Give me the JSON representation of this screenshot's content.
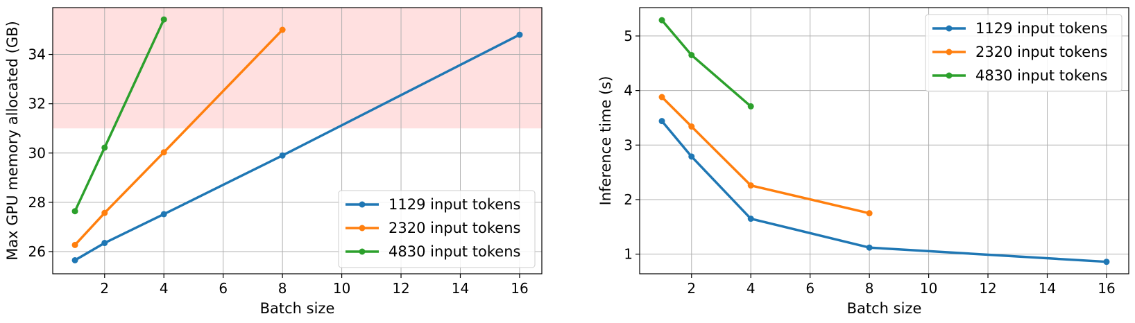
{
  "colors": {
    "series": [
      "#1f77b4",
      "#ff7f0e",
      "#2ca02c"
    ],
    "highlight_band": "#ffe0e0",
    "grid": "#b0b0b0",
    "axis": "#000000",
    "legend_border": "#cccccc"
  },
  "chart_data": [
    {
      "type": "line",
      "title": "",
      "xlabel": "Batch size",
      "ylabel": "Max GPU memory allocated (GB)",
      "xlim": [
        0.25,
        16.75
      ],
      "ylim": [
        25.1,
        35.9
      ],
      "xticks": [
        2,
        4,
        6,
        8,
        10,
        12,
        14,
        16
      ],
      "yticks": [
        26,
        28,
        30,
        32,
        34
      ],
      "grid": true,
      "legend_position": "lower-right",
      "shaded_region": {
        "y_from": 31.0,
        "y_to": 35.9
      },
      "series": [
        {
          "name": "1129 input tokens",
          "x": [
            1,
            2,
            4,
            8,
            16
          ],
          "y": [
            25.65,
            26.35,
            27.52,
            29.9,
            34.8
          ]
        },
        {
          "name": "2320 input tokens",
          "x": [
            1,
            2,
            4,
            8
          ],
          "y": [
            26.27,
            27.57,
            30.03,
            35.0
          ]
        },
        {
          "name": "4830 input tokens",
          "x": [
            1,
            2,
            4
          ],
          "y": [
            27.64,
            30.22,
            35.42
          ]
        }
      ]
    },
    {
      "type": "line",
      "title": "",
      "xlabel": "Batch size",
      "ylabel": "Inference time (s)",
      "xlim": [
        0.25,
        16.75
      ],
      "ylim": [
        0.64,
        5.52
      ],
      "xticks": [
        2,
        4,
        6,
        8,
        10,
        12,
        14,
        16
      ],
      "yticks": [
        1,
        2,
        3,
        4,
        5
      ],
      "grid": true,
      "legend_position": "upper-right",
      "series": [
        {
          "name": "1129 input tokens",
          "x": [
            1,
            2,
            4,
            8,
            16
          ],
          "y": [
            3.44,
            2.79,
            1.65,
            1.12,
            0.86
          ]
        },
        {
          "name": "2320 input tokens",
          "x": [
            1,
            2,
            4,
            8
          ],
          "y": [
            3.88,
            3.34,
            2.26,
            1.75
          ]
        },
        {
          "name": "4830 input tokens",
          "x": [
            1,
            2,
            4
          ],
          "y": [
            5.29,
            4.65,
            3.71
          ]
        }
      ]
    }
  ]
}
